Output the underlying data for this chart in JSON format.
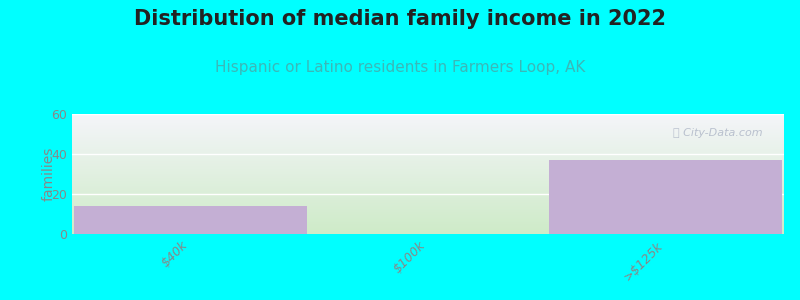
{
  "title": "Distribution of median family income in 2022",
  "subtitle": "Hispanic or Latino residents in Farmers Loop, AK",
  "categories": [
    "$40k",
    "$100k",
    ">$125k"
  ],
  "values": [
    14,
    0,
    37
  ],
  "bar_color": "#c4afd4",
  "background_color": "#00ffff",
  "ylabel": "families",
  "ylim": [
    0,
    60
  ],
  "yticks": [
    0,
    20,
    40,
    60
  ],
  "title_fontsize": 15,
  "subtitle_fontsize": 11,
  "title_color": "#222222",
  "subtitle_color": "#3ab8b8",
  "ylabel_color": "#888888",
  "tick_color": "#888888",
  "watermark": "ⓘ City-Data.com",
  "grid_color": "#dddddd",
  "grad_bottom": "#ceebc8",
  "grad_top": "#f5f5fa"
}
